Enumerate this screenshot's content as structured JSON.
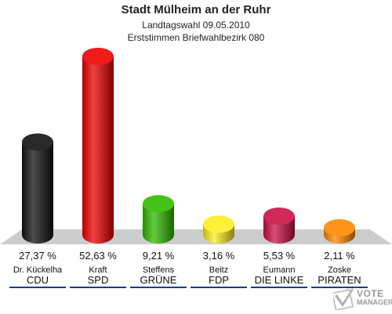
{
  "header": {
    "title": "Stadt Mülheim an der Ruhr",
    "subtitle": "Landtagswahl 09.05.2010",
    "subtitle2": "Erststimmen Briefwahlbezirk 080"
  },
  "chart_data": {
    "type": "bar",
    "title": "Stadt Mülheim an der Ruhr",
    "categories": [
      "CDU",
      "SPD",
      "GRÜNE",
      "FDP",
      "DIE LINKE",
      "PIRATEN"
    ],
    "candidates": [
      "Dr. Kückelha",
      "Kraft",
      "Steffens",
      "Beitz",
      "Eumann",
      "Zoske"
    ],
    "values": [
      27.37,
      52.63,
      9.21,
      3.16,
      5.53,
      2.11
    ],
    "value_labels": [
      "27,37 %",
      "52,63 %",
      "9,21 %",
      "3,16 %",
      "5,53 %",
      "2,11 %"
    ],
    "colors": [
      "#111111",
      "#ee0000",
      "#33bb00",
      "#ffee22",
      "#cc1144",
      "#ff8800"
    ],
    "grid": false,
    "legend": "none"
  },
  "logo": {
    "line1": "VOTE",
    "line2": "MANAGER",
    "icon": "ballot-check-icon"
  }
}
